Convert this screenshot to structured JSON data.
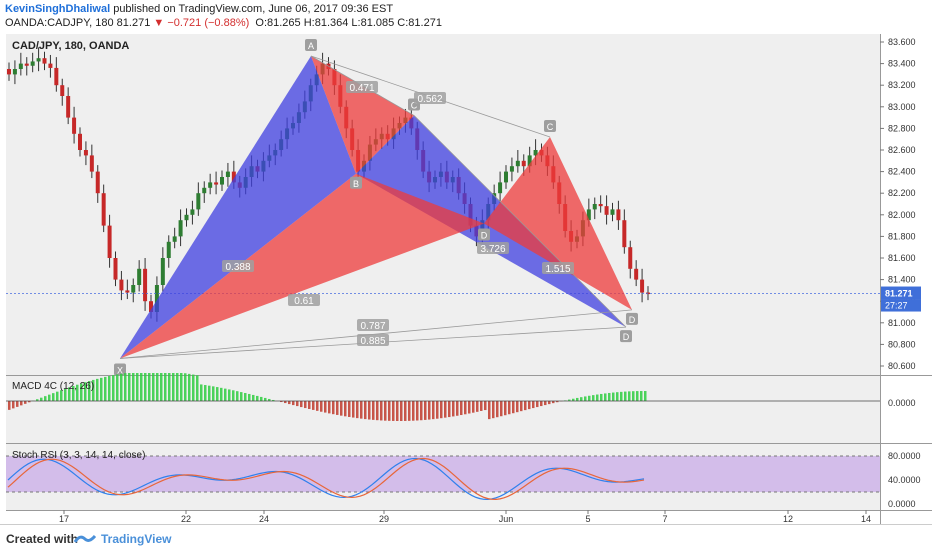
{
  "header": {
    "author": "KevinSinghDhaliwal",
    "published_text": " published on TradingView.com, June 06, 2017 09:36 EST",
    "symbol_line": "OANDA:CADJPY, 180  81.271",
    "change": "▼ −0.721 (−0.88%)",
    "ohlc": "O:81.265  H:81.364  L:81.085  C:81.271"
  },
  "footer": {
    "created": "Created with",
    "brand": "TradingView"
  },
  "colors": {
    "up": "#2e7d32",
    "down": "#c62828",
    "pattern_blue": "#3f3fe0",
    "pattern_red": "#ee3b3b",
    "macd_up": "#2ecc40",
    "macd_down": "#c0392b",
    "stoch_k": "#2f80ed",
    "stoch_d": "#e8663a",
    "stoch_band": "#c8a8e8"
  },
  "chart_data": [
    {
      "type": "candlestick",
      "title": "CAD/JPY, 180, OANDA",
      "ylim": [
        80.5,
        83.65
      ],
      "yticks": [
        "83.600",
        "83.400",
        "83.200",
        "83.000",
        "82.800",
        "82.600",
        "82.400",
        "82.200",
        "82.000",
        "81.800",
        "81.600",
        "81.400",
        "81.200",
        "81.000",
        "80.800",
        "80.600"
      ],
      "xticks": [
        "17",
        "22",
        "24",
        "29",
        "Jun",
        "5",
        "7",
        "12",
        "14"
      ],
      "last_price": "81.271",
      "countdown": "27:27",
      "pattern_points": [
        {
          "label": "X",
          "price": 80.67
        },
        {
          "label": "A",
          "price": 83.47
        },
        {
          "label": "B",
          "price": 82.38
        },
        {
          "label": "C",
          "price": 82.92
        },
        {
          "label": "D",
          "price": 81.92
        },
        {
          "label": "C",
          "price": 82.72
        },
        {
          "label": "D",
          "price": 81.12
        },
        {
          "label": "D",
          "price": 80.96
        }
      ],
      "ratios": [
        "0.471",
        "0.562",
        "0.388",
        "0.61",
        "3.726",
        "1.515",
        "0.787",
        "0.885"
      ],
      "closes": [
        83.3,
        83.35,
        83.4,
        83.38,
        83.42,
        83.45,
        83.4,
        83.36,
        83.2,
        83.1,
        82.9,
        82.75,
        82.6,
        82.55,
        82.4,
        82.2,
        81.9,
        81.6,
        81.4,
        81.3,
        81.28,
        81.35,
        81.5,
        81.2,
        81.1,
        81.35,
        81.6,
        81.75,
        81.8,
        81.95,
        82.0,
        82.05,
        82.2,
        82.25,
        82.3,
        82.28,
        82.35,
        82.4,
        82.3,
        82.25,
        82.35,
        82.45,
        82.4,
        82.5,
        82.55,
        82.6,
        82.7,
        82.8,
        82.85,
        82.95,
        83.05,
        83.2,
        83.3,
        83.4,
        83.35,
        83.2,
        83.0,
        82.8,
        82.6,
        82.4,
        82.5,
        82.65,
        82.7,
        82.75,
        82.7,
        82.8,
        82.85,
        82.9,
        82.8,
        82.6,
        82.4,
        82.3,
        82.35,
        82.4,
        82.3,
        82.35,
        82.2,
        82.1,
        81.9,
        81.8,
        81.95,
        82.1,
        82.2,
        82.3,
        82.4,
        82.45,
        82.5,
        82.45,
        82.55,
        82.6,
        82.55,
        82.45,
        82.3,
        82.1,
        81.85,
        81.75,
        81.8,
        81.95,
        82.05,
        82.1,
        82.08,
        82.0,
        82.05,
        81.95,
        81.7,
        81.5,
        81.4,
        81.28,
        81.27
      ],
      "ref_price": 81.271
    },
    {
      "type": "bar",
      "title": "MACD 4C (12, 26)",
      "yticks": [
        "0.0000"
      ]
    },
    {
      "type": "line",
      "title": "Stoch RSI (3, 3, 14, 14, close)",
      "yticks": [
        "80.0000",
        "40.0000",
        "0.0000"
      ]
    }
  ]
}
